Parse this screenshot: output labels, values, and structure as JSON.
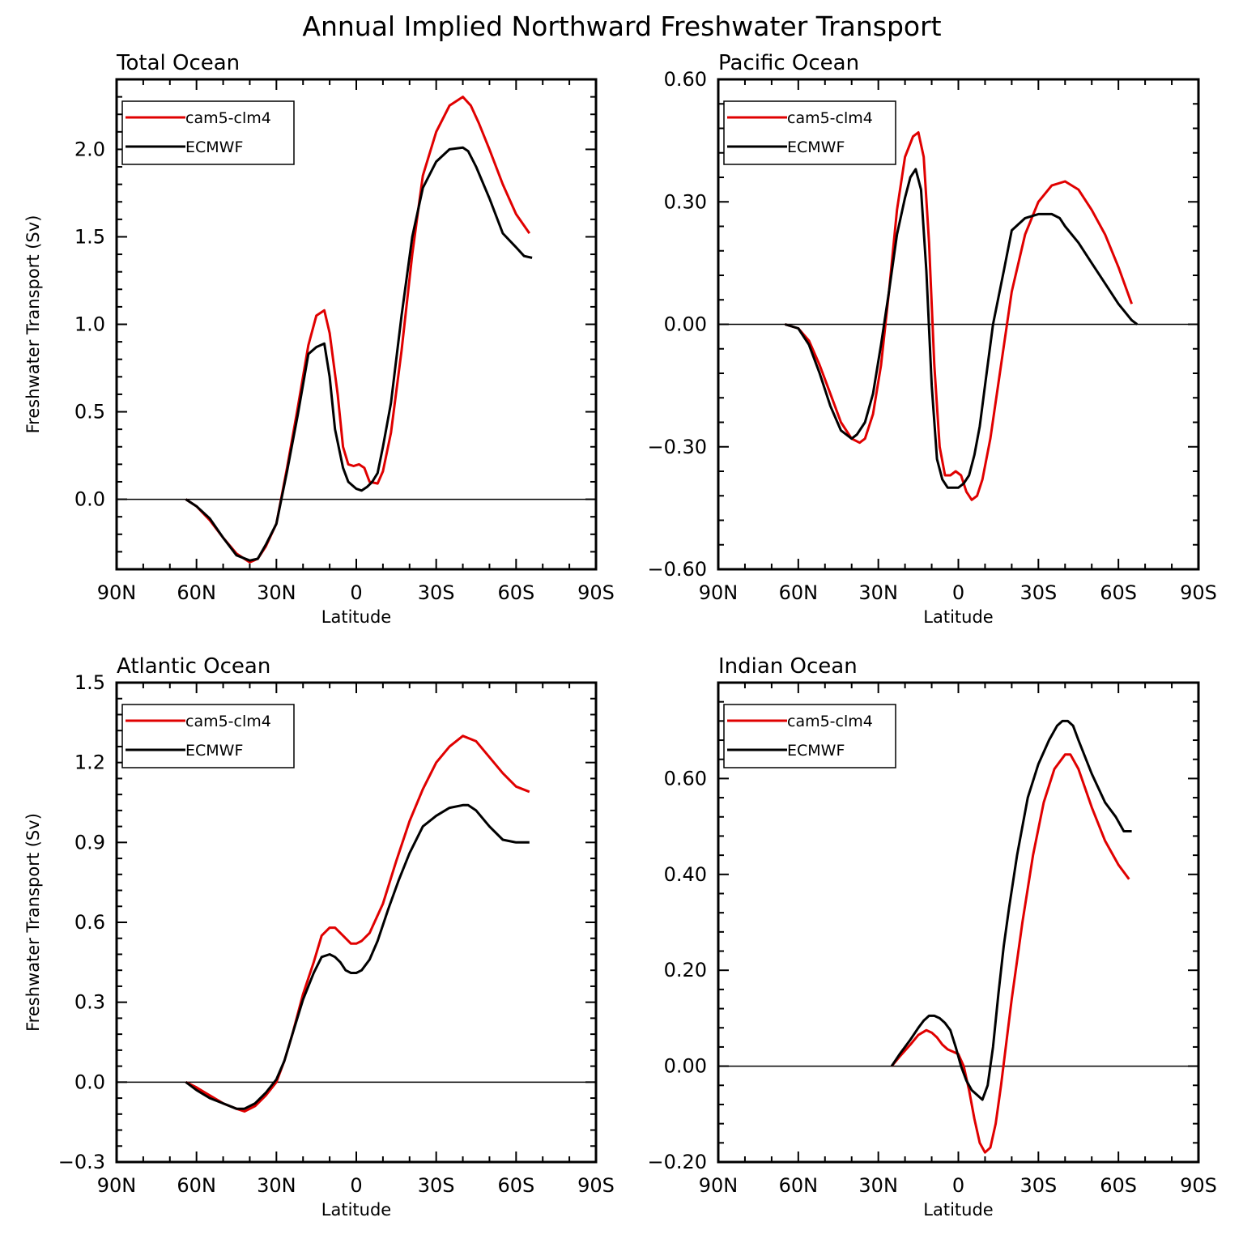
{
  "figure_title": "Annual Implied Northward Freshwater Transport",
  "chart_data": [
    {
      "type": "line",
      "title": "Total Ocean",
      "xlabel": "Latitude",
      "ylabel": "Freshwater Transport (Sv)",
      "xlim": [
        90,
        -90
      ],
      "ylim": [
        -0.4,
        2.4
      ],
      "xticks": [
        {
          "v": 90,
          "label": "90N"
        },
        {
          "v": 60,
          "label": "60N"
        },
        {
          "v": 30,
          "label": "30N"
        },
        {
          "v": 0,
          "label": "0"
        },
        {
          "v": -30,
          "label": "30S"
        },
        {
          "v": -60,
          "label": "60S"
        },
        {
          "v": -90,
          "label": "90S"
        }
      ],
      "yticks": [
        {
          "v": 0.0,
          "label": "0.0"
        },
        {
          "v": 0.5,
          "label": "0.5"
        },
        {
          "v": 1.0,
          "label": "1.0"
        },
        {
          "v": 1.5,
          "label": "1.5"
        },
        {
          "v": 2.0,
          "label": "2.0"
        }
      ],
      "zero_line": true,
      "legend_position": "top-left",
      "series": [
        {
          "name": "cam5-clm4",
          "color": "#e00000",
          "x": [
            64,
            60,
            55,
            50,
            45,
            40,
            37,
            34,
            30,
            26,
            22,
            18,
            15,
            12,
            10,
            7,
            5,
            3,
            1,
            -1,
            -3,
            -5,
            -8,
            -10,
            -13,
            -17,
            -21,
            -25,
            -30,
            -35,
            -40,
            -43,
            -46,
            -50,
            -55,
            -60,
            -65
          ],
          "y": [
            0.0,
            -0.04,
            -0.12,
            -0.22,
            -0.31,
            -0.36,
            -0.34,
            -0.27,
            -0.14,
            0.18,
            0.52,
            0.88,
            1.05,
            1.08,
            0.95,
            0.6,
            0.3,
            0.2,
            0.19,
            0.2,
            0.18,
            0.1,
            0.09,
            0.16,
            0.38,
            0.85,
            1.4,
            1.85,
            2.1,
            2.25,
            2.3,
            2.25,
            2.15,
            2.0,
            1.8,
            1.63,
            1.52
          ]
        },
        {
          "name": "ECMWF",
          "color": "#000000",
          "x": [
            64,
            60,
            55,
            50,
            45,
            40,
            37,
            34,
            30,
            26,
            22,
            18,
            15,
            12,
            10,
            8,
            5,
            3,
            0,
            -2,
            -4,
            -6,
            -8,
            -10,
            -13,
            -17,
            -21,
            -25,
            -30,
            -35,
            -40,
            -42,
            -45,
            -50,
            -55,
            -60,
            -63,
            -66
          ],
          "y": [
            0.0,
            -0.04,
            -0.11,
            -0.22,
            -0.32,
            -0.35,
            -0.34,
            -0.26,
            -0.14,
            0.16,
            0.48,
            0.83,
            0.87,
            0.89,
            0.7,
            0.4,
            0.18,
            0.1,
            0.06,
            0.05,
            0.07,
            0.1,
            0.15,
            0.3,
            0.55,
            1.05,
            1.5,
            1.78,
            1.93,
            2.0,
            2.01,
            1.99,
            1.9,
            1.72,
            1.52,
            1.44,
            1.39,
            1.38
          ]
        }
      ]
    },
    {
      "type": "line",
      "title": "Pacific Ocean",
      "xlabel": "Latitude",
      "ylabel": "",
      "xlim": [
        90,
        -90
      ],
      "ylim": [
        -0.6,
        0.6
      ],
      "xticks": [
        {
          "v": 90,
          "label": "90N"
        },
        {
          "v": 60,
          "label": "60N"
        },
        {
          "v": 30,
          "label": "30N"
        },
        {
          "v": 0,
          "label": "0"
        },
        {
          "v": -30,
          "label": "30S"
        },
        {
          "v": -60,
          "label": "60S"
        },
        {
          "v": -90,
          "label": "90S"
        }
      ],
      "yticks": [
        {
          "v": -0.6,
          "label": "−0.60"
        },
        {
          "v": -0.3,
          "label": "−0.30"
        },
        {
          "v": 0.0,
          "label": "0.00"
        },
        {
          "v": 0.3,
          "label": "0.30"
        },
        {
          "v": 0.6,
          "label": "0.60"
        }
      ],
      "zero_line": true,
      "legend_position": "top-left",
      "series": [
        {
          "name": "cam5-clm4",
          "color": "#e00000",
          "x": [
            65,
            60,
            56,
            52,
            48,
            44,
            40,
            37,
            35,
            32,
            29,
            26,
            23,
            20,
            17,
            15,
            13,
            11,
            9,
            7,
            5,
            3,
            1,
            -1,
            -3,
            -5,
            -7,
            -9,
            -12,
            -16,
            -20,
            -25,
            -30,
            -35,
            -40,
            -45,
            -50,
            -55,
            -60,
            -65
          ],
          "y": [
            0.0,
            -0.01,
            -0.04,
            -0.1,
            -0.17,
            -0.24,
            -0.28,
            -0.29,
            -0.28,
            -0.22,
            -0.1,
            0.08,
            0.28,
            0.41,
            0.46,
            0.47,
            0.41,
            0.2,
            -0.1,
            -0.3,
            -0.37,
            -0.37,
            -0.36,
            -0.37,
            -0.41,
            -0.43,
            -0.42,
            -0.38,
            -0.28,
            -0.1,
            0.08,
            0.22,
            0.3,
            0.34,
            0.35,
            0.33,
            0.28,
            0.22,
            0.14,
            0.05
          ]
        },
        {
          "name": "ECMWF",
          "color": "#000000",
          "x": [
            65,
            60,
            56,
            52,
            48,
            44,
            40,
            38,
            35,
            32,
            29,
            26,
            23,
            20,
            18,
            16,
            14,
            12,
            10,
            8,
            6,
            4,
            2,
            0,
            -2,
            -4,
            -6,
            -8,
            -10,
            -13,
            -17,
            -20,
            -25,
            -30,
            -35,
            -38,
            -40,
            -45,
            -50,
            -55,
            -60,
            -65,
            -67
          ],
          "y": [
            0.0,
            -0.01,
            -0.05,
            -0.12,
            -0.2,
            -0.26,
            -0.28,
            -0.27,
            -0.24,
            -0.17,
            -0.05,
            0.08,
            0.22,
            0.31,
            0.36,
            0.38,
            0.33,
            0.13,
            -0.15,
            -0.33,
            -0.38,
            -0.4,
            -0.4,
            -0.4,
            -0.39,
            -0.37,
            -0.32,
            -0.25,
            -0.15,
            0.0,
            0.13,
            0.23,
            0.26,
            0.27,
            0.27,
            0.26,
            0.24,
            0.2,
            0.15,
            0.1,
            0.05,
            0.01,
            0.0
          ]
        }
      ]
    },
    {
      "type": "line",
      "title": "Atlantic Ocean",
      "xlabel": "Latitude",
      "ylabel": "Freshwater Transport (Sv)",
      "xlim": [
        90,
        -90
      ],
      "ylim": [
        -0.3,
        1.5
      ],
      "xticks": [
        {
          "v": 90,
          "label": "90N"
        },
        {
          "v": 60,
          "label": "60N"
        },
        {
          "v": 30,
          "label": "30N"
        },
        {
          "v": 0,
          "label": "0"
        },
        {
          "v": -30,
          "label": "30S"
        },
        {
          "v": -60,
          "label": "60S"
        },
        {
          "v": -90,
          "label": "90S"
        }
      ],
      "yticks": [
        {
          "v": -0.3,
          "label": "−0.3"
        },
        {
          "v": 0.0,
          "label": "0.0"
        },
        {
          "v": 0.3,
          "label": "0.3"
        },
        {
          "v": 0.6,
          "label": "0.6"
        },
        {
          "v": 0.9,
          "label": "0.9"
        },
        {
          "v": 1.2,
          "label": "1.2"
        },
        {
          "v": 1.5,
          "label": "1.5"
        }
      ],
      "zero_line": true,
      "legend_position": "top-left",
      "series": [
        {
          "name": "cam5-clm4",
          "color": "#e00000",
          "x": [
            64,
            60,
            55,
            50,
            45,
            42,
            38,
            34,
            30,
            27,
            24,
            20,
            16,
            13,
            10,
            8,
            5,
            2,
            0,
            -2,
            -5,
            -10,
            -15,
            -20,
            -25,
            -30,
            -35,
            -40,
            -45,
            -50,
            -55,
            -60,
            -65
          ],
          "y": [
            0.0,
            -0.02,
            -0.05,
            -0.08,
            -0.1,
            -0.11,
            -0.09,
            -0.05,
            0.0,
            0.08,
            0.18,
            0.33,
            0.45,
            0.55,
            0.58,
            0.58,
            0.55,
            0.52,
            0.52,
            0.53,
            0.56,
            0.67,
            0.83,
            0.98,
            1.1,
            1.2,
            1.26,
            1.3,
            1.28,
            1.22,
            1.16,
            1.11,
            1.09
          ]
        },
        {
          "name": "ECMWF",
          "color": "#000000",
          "x": [
            64,
            60,
            55,
            50,
            45,
            42,
            38,
            34,
            30,
            27,
            24,
            20,
            16,
            13,
            10,
            8,
            6,
            4,
            2,
            0,
            -2,
            -5,
            -8,
            -12,
            -16,
            -20,
            -25,
            -30,
            -35,
            -40,
            -42,
            -45,
            -50,
            -55,
            -60,
            -65
          ],
          "y": [
            0.0,
            -0.03,
            -0.06,
            -0.08,
            -0.1,
            -0.1,
            -0.08,
            -0.04,
            0.01,
            0.08,
            0.18,
            0.31,
            0.41,
            0.47,
            0.48,
            0.47,
            0.45,
            0.42,
            0.41,
            0.41,
            0.42,
            0.46,
            0.53,
            0.65,
            0.76,
            0.86,
            0.96,
            1.0,
            1.03,
            1.04,
            1.04,
            1.02,
            0.96,
            0.91,
            0.9,
            0.9
          ]
        }
      ]
    },
    {
      "type": "line",
      "title": "Indian Ocean",
      "xlabel": "Latitude",
      "ylabel": "",
      "xlim": [
        90,
        -90
      ],
      "ylim": [
        -0.2,
        0.8
      ],
      "xticks": [
        {
          "v": 90,
          "label": "90N"
        },
        {
          "v": 60,
          "label": "60N"
        },
        {
          "v": 30,
          "label": "30N"
        },
        {
          "v": 0,
          "label": "0"
        },
        {
          "v": -30,
          "label": "30S"
        },
        {
          "v": -60,
          "label": "60S"
        },
        {
          "v": -90,
          "label": "90S"
        }
      ],
      "yticks": [
        {
          "v": -0.2,
          "label": "−0.20"
        },
        {
          "v": 0.0,
          "label": "0.00"
        },
        {
          "v": 0.2,
          "label": "0.20"
        },
        {
          "v": 0.4,
          "label": "0.40"
        },
        {
          "v": 0.6,
          "label": "0.60"
        }
      ],
      "zero_line": true,
      "legend_position": "top-left",
      "series": [
        {
          "name": "cam5-clm4",
          "color": "#e00000",
          "x": [
            25,
            22,
            18,
            15,
            12,
            10,
            8,
            6,
            4,
            2,
            0,
            -2,
            -4,
            -6,
            -8,
            -10,
            -12,
            -14,
            -16,
            -18,
            -20,
            -24,
            -28,
            -32,
            -36,
            -40,
            -42,
            -45,
            -50,
            -55,
            -60,
            -64
          ],
          "y": [
            0.0,
            0.02,
            0.045,
            0.065,
            0.075,
            0.07,
            0.06,
            0.045,
            0.035,
            0.03,
            0.025,
            0.0,
            -0.05,
            -0.11,
            -0.16,
            -0.18,
            -0.17,
            -0.12,
            -0.04,
            0.05,
            0.14,
            0.3,
            0.44,
            0.55,
            0.62,
            0.65,
            0.65,
            0.62,
            0.54,
            0.47,
            0.42,
            0.39
          ]
        },
        {
          "name": "ECMWF",
          "color": "#000000",
          "x": [
            25,
            22,
            18,
            15,
            13,
            11,
            9,
            7,
            5,
            3,
            1,
            -1,
            -3,
            -5,
            -7,
            -9,
            -11,
            -13,
            -15,
            -17,
            -19,
            -22,
            -26,
            -30,
            -34,
            -37,
            -39,
            -41,
            -43,
            -45,
            -50,
            -55,
            -59,
            -62,
            -65
          ],
          "y": [
            0.0,
            0.025,
            0.055,
            0.08,
            0.095,
            0.105,
            0.105,
            0.1,
            0.09,
            0.075,
            0.04,
            0.0,
            -0.03,
            -0.05,
            -0.06,
            -0.07,
            -0.04,
            0.04,
            0.15,
            0.25,
            0.33,
            0.44,
            0.56,
            0.63,
            0.68,
            0.71,
            0.72,
            0.72,
            0.71,
            0.68,
            0.61,
            0.55,
            0.52,
            0.49,
            0.49
          ]
        }
      ]
    }
  ]
}
